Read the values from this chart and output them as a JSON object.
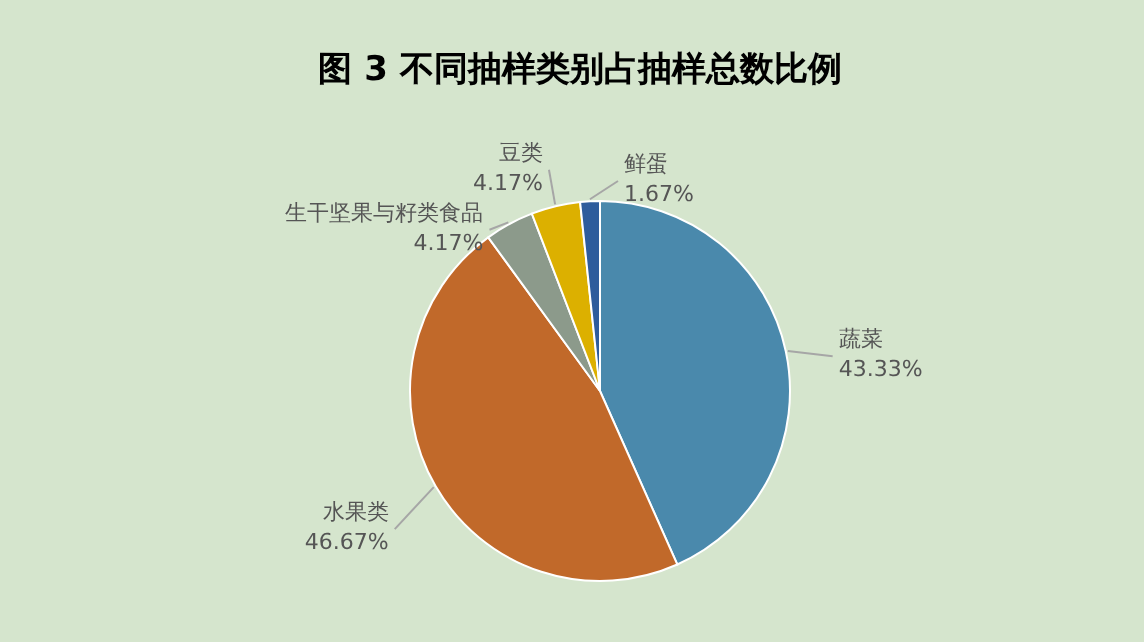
{
  "chart_data": {
    "type": "pie",
    "title": "图 3 不同抽样类别占抽样总数比例",
    "categories": [
      "蔬菜",
      "水果类",
      "生干坚果与籽类食品",
      "豆类",
      "鲜蛋"
    ],
    "values": [
      43.33,
      46.67,
      4.17,
      4.17,
      1.67
    ],
    "value_labels": [
      "43.33%",
      "46.67%",
      "4.17%",
      "4.17%",
      "1.67%"
    ],
    "colors": [
      "#4a89ac",
      "#c1692a",
      "#8c9a8b",
      "#dcb000",
      "#2e5c9c"
    ],
    "legend": false
  }
}
